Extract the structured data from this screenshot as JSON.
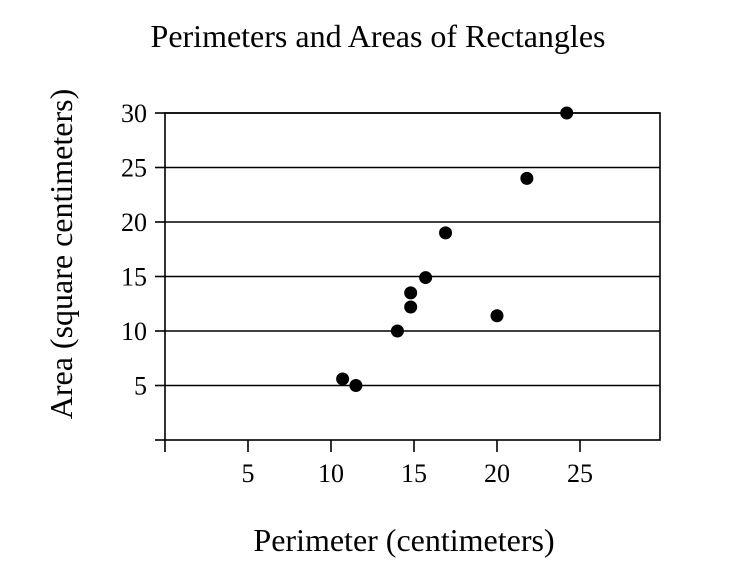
{
  "chart_data": {
    "type": "scatter",
    "title": "Perimeters and Areas of Rectangles",
    "xlabel": "Perimeter (centimeters)",
    "ylabel": "Area (square centimeters)",
    "xlim": [
      0,
      30
    ],
    "ylim": [
      0,
      30
    ],
    "x_ticks": [
      5,
      10,
      15,
      20,
      25
    ],
    "y_ticks": [
      5,
      10,
      15,
      20,
      25,
      30
    ],
    "grid": "horizontal",
    "points": [
      {
        "x": 10.7,
        "y": 5.6
      },
      {
        "x": 11.5,
        "y": 5.0
      },
      {
        "x": 14.0,
        "y": 10.0
      },
      {
        "x": 14.8,
        "y": 12.2
      },
      {
        "x": 14.8,
        "y": 13.5
      },
      {
        "x": 15.7,
        "y": 14.9
      },
      {
        "x": 16.9,
        "y": 19.0
      },
      {
        "x": 20.0,
        "y": 11.4
      },
      {
        "x": 21.8,
        "y": 24.0
      },
      {
        "x": 24.2,
        "y": 30.0
      }
    ]
  }
}
